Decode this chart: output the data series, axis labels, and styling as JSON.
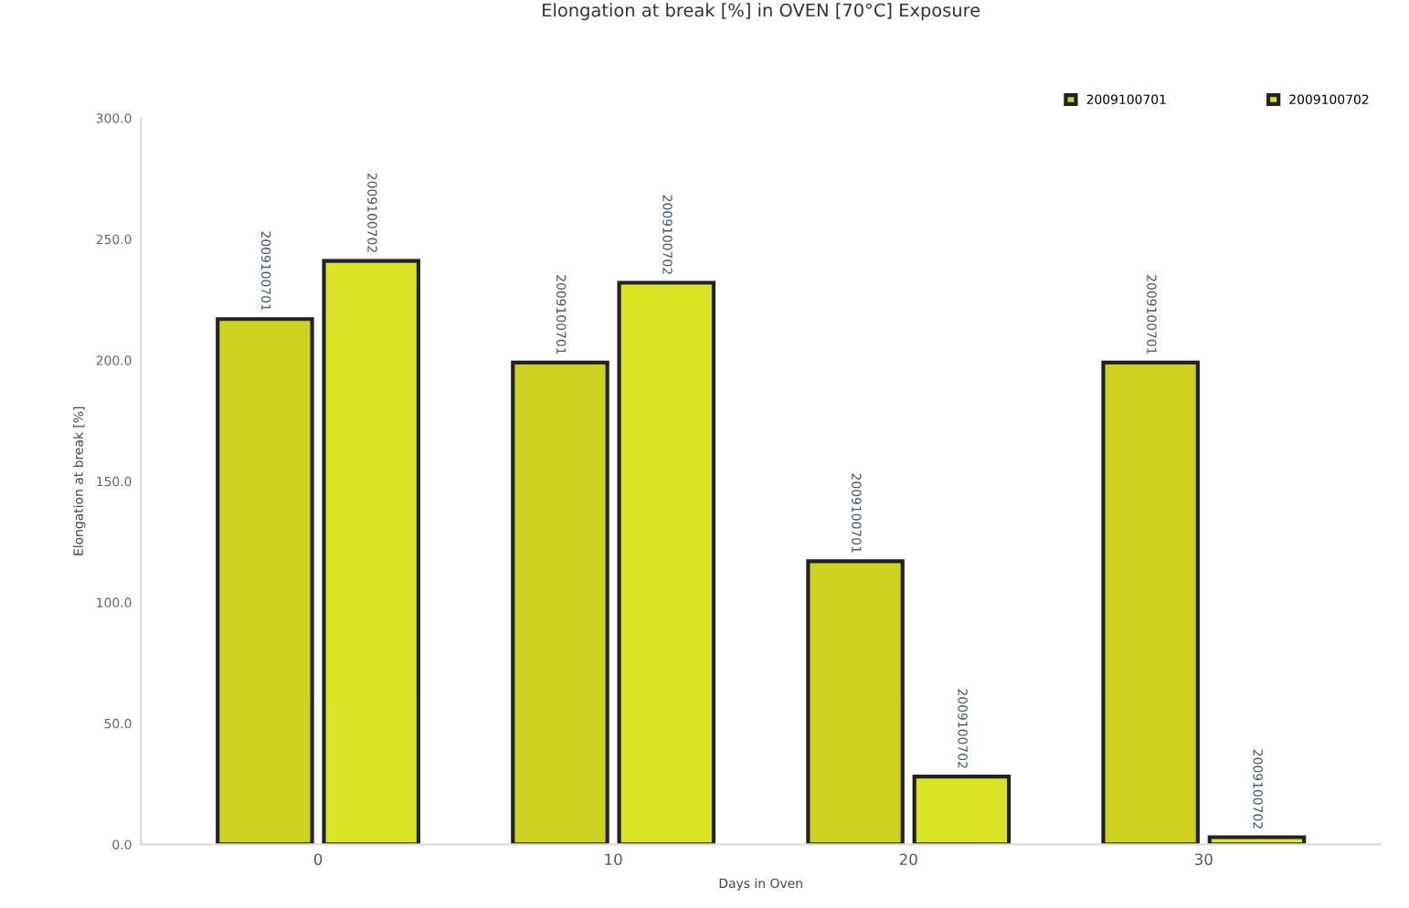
{
  "chart_data": {
    "type": "bar",
    "title": "Elongation at break [%] in OVEN [70°C] Exposure",
    "xlabel": "Days in Oven",
    "ylabel": "Elongation at break [%]",
    "categories": [
      "0",
      "10",
      "20",
      "30"
    ],
    "series": [
      {
        "name": "2009100701",
        "color": "#cdd220",
        "values": [
          217,
          199,
          117,
          199
        ]
      },
      {
        "name": "2009100702",
        "color": "#d9e524",
        "values": [
          241,
          232,
          28,
          3
        ]
      }
    ],
    "annotations": [
      "2009100701",
      "2009100702",
      "2009100701",
      "2009100702",
      "2009100701",
      "2009100702",
      "2009100701",
      "2009100702"
    ],
    "ylim": [
      0,
      300
    ],
    "yticks": [
      {
        "value": 0,
        "label": "0.0"
      },
      {
        "value": 50,
        "label": "50.0"
      },
      {
        "value": 100,
        "label": "100.0"
      },
      {
        "value": 150,
        "label": "150.0"
      },
      {
        "value": 200,
        "label": "200.0"
      },
      {
        "value": 250,
        "label": "250.0"
      },
      {
        "value": 300,
        "label": "300.0"
      }
    ],
    "grid": false,
    "legend": "top right"
  }
}
